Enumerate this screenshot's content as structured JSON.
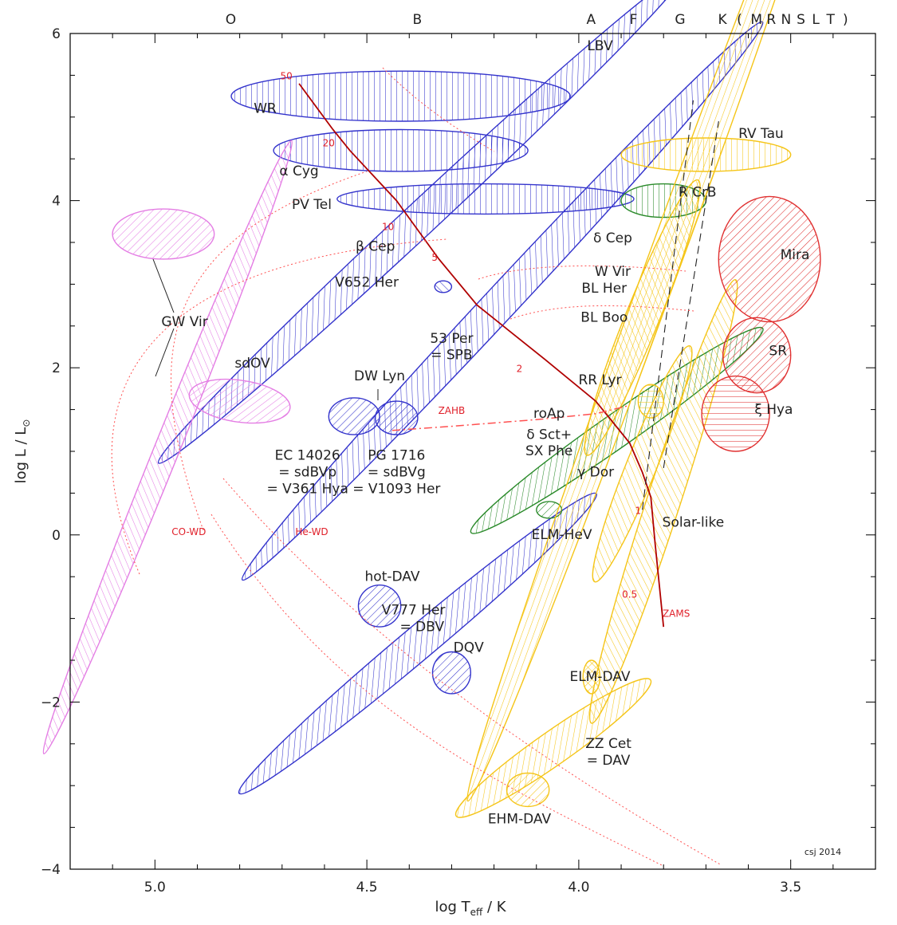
{
  "chart_data": {
    "type": "scatter",
    "xlabel_main": "log T",
    "xlabel_sub": "eff",
    "xlabel_tail": " / K",
    "ylabel_main": "log L / L",
    "ylabel_sun": "⊙",
    "x_reversed": true,
    "xlim": [
      5.2,
      3.3
    ],
    "ylim": [
      -4,
      6
    ],
    "x_ticks": [
      5.0,
      4.5,
      4.0,
      3.5
    ],
    "x_tick_labels": [
      "5.0",
      "4.5",
      "4.0",
      "3.5"
    ],
    "y_ticks": [
      6,
      4,
      2,
      0,
      -2,
      -4
    ],
    "y_tick_labels": [
      "6",
      "4",
      "2",
      "0",
      "−2",
      "−4"
    ],
    "spectral_types": [
      {
        "label": "O",
        "x": 4.82
      },
      {
        "label": "B",
        "x": 4.38
      },
      {
        "label": "A",
        "x": 3.97
      },
      {
        "label": "F",
        "x": 3.87
      },
      {
        "label": "G",
        "x": 3.76
      },
      {
        "label": "K",
        "x": 3.66
      },
      {
        "label": "(",
        "x": 3.62
      },
      {
        "label": "M",
        "x": 3.58
      },
      {
        "label": "R",
        "x": 3.545
      },
      {
        "label": "N",
        "x": 3.51
      },
      {
        "label": "S",
        "x": 3.475
      },
      {
        "label": "L",
        "x": 3.44
      },
      {
        "label": "T",
        "x": 3.405
      },
      {
        "label": ")",
        "x": 3.37
      }
    ],
    "credit": "csj 2014",
    "colors": {
      "p_mode": "#3333cc",
      "g_mode": "#33aa33",
      "solar": "#f5c518",
      "red_giant": "#e03030",
      "gw_vir": "#e47ee4",
      "zams": "#b00000",
      "tracks": "#ff5050"
    },
    "regions": [
      {
        "name": "LBV",
        "x": 4.42,
        "y": 5.25,
        "rx": 0.4,
        "ry": 0.3,
        "angle": 0,
        "color": "#3333cc",
        "hatch": "v"
      },
      {
        "name": "WR",
        "x": 4.42,
        "y": 4.6,
        "rx": 0.3,
        "ry": 0.25,
        "angle": 0,
        "color": "#3333cc",
        "hatch": "v"
      },
      {
        "name": "PV Tel",
        "x": 4.22,
        "y": 4.02,
        "rx": 0.35,
        "ry": 0.18,
        "angle": 0,
        "color": "#3333cc",
        "hatch": "v"
      },
      {
        "name": "β Cep",
        "x": 4.37,
        "y": 3.8,
        "rx": 0.85,
        "ry": 0.2,
        "angle": 43,
        "color": "#3333cc",
        "hatch": "d"
      },
      {
        "name": "SPB",
        "x": 4.18,
        "y": 2.8,
        "rx": 0.9,
        "ry": 0.2,
        "angle": 47,
        "color": "#3333cc",
        "hatch": "d"
      },
      {
        "name": "V652 Her",
        "x": 4.32,
        "y": 2.97,
        "rx": 0.02,
        "ry": 0.07,
        "angle": 0,
        "color": "#3333cc",
        "hatch": "n"
      },
      {
        "name": "EC 14026",
        "x": 4.53,
        "y": 1.42,
        "rx": 0.06,
        "ry": 0.22,
        "angle": 0,
        "color": "#3333cc",
        "hatch": "d"
      },
      {
        "name": "PG 1716",
        "x": 4.43,
        "y": 1.4,
        "rx": 0.05,
        "ry": 0.2,
        "angle": 0,
        "color": "#3333cc",
        "hatch": "d"
      },
      {
        "name": "hot-DAV",
        "x": 4.47,
        "y": -0.85,
        "rx": 0.05,
        "ry": 0.25,
        "angle": 0,
        "color": "#3333cc",
        "hatch": "d"
      },
      {
        "name": "V777 Her",
        "x": 4.38,
        "y": -1.3,
        "rx": 0.55,
        "ry": 0.2,
        "angle": 40,
        "color": "#3333cc",
        "hatch": "d"
      },
      {
        "name": "DQV",
        "x": 4.3,
        "y": -1.65,
        "rx": 0.045,
        "ry": 0.25,
        "angle": 0,
        "color": "#3333cc",
        "hatch": "d"
      },
      {
        "name": "GW Vir (PNNV)",
        "x": 4.98,
        "y": 3.6,
        "rx": 0.12,
        "ry": 0.3,
        "angle": 0,
        "color": "#e47ee4",
        "hatch": "d"
      },
      {
        "name": "sdOV",
        "x": 4.8,
        "y": 1.6,
        "rx": 0.12,
        "ry": 0.25,
        "angle": -8,
        "color": "#e47ee4",
        "hatch": "d"
      },
      {
        "name": "GW Vir (DO)",
        "x": 4.97,
        "y": 1.05,
        "rx": 0.78,
        "ry": 0.15,
        "angle": 68,
        "color": "#e47ee4",
        "hatch": "d"
      },
      {
        "name": "R CrB",
        "x": 3.8,
        "y": 4.0,
        "rx": 0.1,
        "ry": 0.2,
        "angle": 0,
        "color": "#2a8a2a",
        "hatch": "v"
      },
      {
        "name": "roAp / δ Sct + SX Phe",
        "x": 3.91,
        "y": 1.25,
        "rx": 0.42,
        "ry": 0.2,
        "angle": 35,
        "color": "#2a8a2a",
        "hatch": "d"
      },
      {
        "name": "ELM-HeV",
        "x": 4.07,
        "y": 0.3,
        "rx": 0.03,
        "ry": 0.1,
        "angle": 0,
        "color": "#2a8a2a",
        "hatch": "d"
      },
      {
        "name": "RV Tau",
        "x": 3.7,
        "y": 4.55,
        "rx": 0.2,
        "ry": 0.2,
        "angle": 0,
        "color": "#f5c518",
        "hatch": "v"
      },
      {
        "name": "δ Cep",
        "x": 3.8,
        "y": 3.25,
        "rx": 1.35,
        "ry": 0.2,
        "angle": 70,
        "color": "#f5c518",
        "hatch": "h"
      },
      {
        "name": "BL Her",
        "x": 3.85,
        "y": 2.6,
        "rx": 0.35,
        "ry": 0.2,
        "angle": 68,
        "color": "#f5c518",
        "hatch": "d"
      },
      {
        "name": "RR Lyr",
        "x": 3.83,
        "y": 1.6,
        "rx": 0.03,
        "ry": 0.2,
        "angle": 0,
        "color": "#f5c518",
        "hatch": "h"
      },
      {
        "name": "γ Dor",
        "x": 3.85,
        "y": 0.85,
        "rx": 0.3,
        "ry": 0.18,
        "angle": 68,
        "color": "#f5c518",
        "hatch": "d"
      },
      {
        "name": "Solar-like",
        "x": 3.8,
        "y": 0.4,
        "rx": 0.55,
        "ry": 0.2,
        "angle": 72,
        "color": "#f5c518",
        "hatch": "d"
      },
      {
        "name": "ELM-DAV",
        "x": 3.97,
        "y": -1.7,
        "rx": 0.02,
        "ry": 0.2,
        "angle": 0,
        "color": "#f5c518",
        "hatch": "x"
      },
      {
        "name": "ZZ Cet",
        "x": 4.06,
        "y": -2.55,
        "rx": 0.28,
        "ry": 0.2,
        "angle": 35,
        "color": "#f5c518",
        "hatch": "d"
      },
      {
        "name": "EHM-DAV",
        "x": 4.12,
        "y": -3.05,
        "rx": 0.05,
        "ry": 0.2,
        "angle": 0,
        "color": "#f5c518",
        "hatch": "d"
      },
      {
        "name": "Mira",
        "x": 3.55,
        "y": 3.3,
        "rx": 0.12,
        "ry": 0.75,
        "angle": 0,
        "color": "#e03030",
        "hatch": "d"
      },
      {
        "name": "SR",
        "x": 3.58,
        "y": 2.15,
        "rx": 0.08,
        "ry": 0.45,
        "angle": 0,
        "color": "#e03030",
        "hatch": "d"
      },
      {
        "name": "ξ Hya",
        "x": 3.63,
        "y": 1.45,
        "rx": 0.08,
        "ry": 0.45,
        "angle": 0,
        "color": "#e03030",
        "hatch": "h"
      }
    ],
    "zams": [
      [
        4.66,
        5.4
      ],
      [
        4.58,
        4.85
      ],
      [
        4.54,
        4.6
      ],
      [
        4.43,
        4.0
      ],
      [
        4.33,
        3.3
      ],
      [
        4.24,
        2.75
      ],
      [
        4.08,
        2.1
      ],
      [
        3.96,
        1.6
      ],
      [
        3.88,
        1.1
      ],
      [
        3.85,
        0.75
      ],
      [
        3.83,
        0.45
      ],
      [
        3.82,
        -0.1
      ],
      [
        3.8,
        -1.1
      ]
    ],
    "zams_masses": [
      {
        "label": "50",
        "x": 4.69,
        "y": 5.45
      },
      {
        "label": "20",
        "x": 4.59,
        "y": 4.65
      },
      {
        "label": "10",
        "x": 4.45,
        "y": 3.65
      },
      {
        "label": "5",
        "x": 4.34,
        "y": 3.28
      },
      {
        "label": "2",
        "x": 4.14,
        "y": 1.95
      },
      {
        "label": "1",
        "x": 3.86,
        "y": 0.25
      },
      {
        "label": "0.5",
        "x": 3.88,
        "y": -0.75
      },
      {
        "label": "ZAMS",
        "x": 3.77,
        "y": -0.98
      }
    ],
    "instability_strip": [
      [
        [
          3.85,
          0.3
        ],
        [
          3.73,
          5.2
        ]
      ],
      [
        [
          3.8,
          0.8
        ],
        [
          3.67,
          4.95
        ]
      ]
    ],
    "zahb": [
      [
        4.44,
        1.25
      ],
      [
        4.3,
        1.3
      ],
      [
        4.1,
        1.38
      ],
      [
        3.96,
        1.45
      ],
      [
        3.88,
        1.55
      ]
    ],
    "other_labels": [
      {
        "text": "ZAHB",
        "x": 4.3,
        "y": 1.45
      },
      {
        "text": "CO-WD",
        "x": 4.92,
        "y": 0.0
      },
      {
        "text": "He-WD",
        "x": 4.63,
        "y": 0.0
      }
    ],
    "region_labels": [
      {
        "text": "LBV",
        "x": 3.95,
        "y": 5.8
      },
      {
        "text": "WR",
        "x": 4.74,
        "y": 5.05
      },
      {
        "text": "α Cyg",
        "x": 4.66,
        "y": 4.3
      },
      {
        "text": "PV Tel",
        "x": 4.63,
        "y": 3.9
      },
      {
        "text": "β Cep",
        "x": 4.48,
        "y": 3.4
      },
      {
        "text": "V652 Her",
        "x": 4.5,
        "y": 2.97
      },
      {
        "text": "GW Vir",
        "x": 4.93,
        "y": 2.5
      },
      {
        "text": "53 Per",
        "x": 4.3,
        "y": 2.3
      },
      {
        "text": "= SPB",
        "x": 4.3,
        "y": 2.1
      },
      {
        "text": "sdOV",
        "x": 4.77,
        "y": 2.0
      },
      {
        "text": "DW Lyn",
        "x": 4.47,
        "y": 1.85
      },
      {
        "text": "EC 14026",
        "x": 4.64,
        "y": 0.9
      },
      {
        "text": "= sdBVp",
        "x": 4.64,
        "y": 0.7
      },
      {
        "text": "= V361 Hya",
        "x": 4.64,
        "y": 0.5
      },
      {
        "text": "PG 1716",
        "x": 4.43,
        "y": 0.9
      },
      {
        "text": "= sdBVg",
        "x": 4.43,
        "y": 0.7
      },
      {
        "text": "= V1093 Her",
        "x": 4.43,
        "y": 0.5
      },
      {
        "text": "hot-DAV",
        "x": 4.44,
        "y": -0.55
      },
      {
        "text": "V777 Her",
        "x": 4.39,
        "y": -0.95
      },
      {
        "text": "= DBV",
        "x": 4.37,
        "y": -1.15
      },
      {
        "text": "DQV",
        "x": 4.26,
        "y": -1.4
      },
      {
        "text": "RV Tau",
        "x": 3.57,
        "y": 4.75
      },
      {
        "text": "R CrB",
        "x": 3.72,
        "y": 4.05
      },
      {
        "text": "δ Cep",
        "x": 3.92,
        "y": 3.5
      },
      {
        "text": "Mira",
        "x": 3.49,
        "y": 3.3
      },
      {
        "text": "W Vir",
        "x": 3.92,
        "y": 3.1
      },
      {
        "text": "BL Her",
        "x": 3.94,
        "y": 2.9
      },
      {
        "text": "BL Boo",
        "x": 3.94,
        "y": 2.55
      },
      {
        "text": "SR",
        "x": 3.53,
        "y": 2.15
      },
      {
        "text": "RR Lyr",
        "x": 3.95,
        "y": 1.8
      },
      {
        "text": "ξ Hya",
        "x": 3.54,
        "y": 1.45
      },
      {
        "text": "roAp",
        "x": 4.07,
        "y": 1.4
      },
      {
        "text": "δ Sct+",
        "x": 4.07,
        "y": 1.15
      },
      {
        "text": "SX Phe",
        "x": 4.07,
        "y": 0.95
      },
      {
        "text": "γ Dor",
        "x": 3.96,
        "y": 0.7
      },
      {
        "text": "Solar-like",
        "x": 3.73,
        "y": 0.1
      },
      {
        "text": "ELM-HeV",
        "x": 4.04,
        "y": -0.05
      },
      {
        "text": "ELM-DAV",
        "x": 3.95,
        "y": -1.75
      },
      {
        "text": "ZZ Cet",
        "x": 3.93,
        "y": -2.55
      },
      {
        "text": "= DAV",
        "x": 3.93,
        "y": -2.75
      },
      {
        "text": "EHM-DAV",
        "x": 4.14,
        "y": -3.45
      }
    ]
  }
}
